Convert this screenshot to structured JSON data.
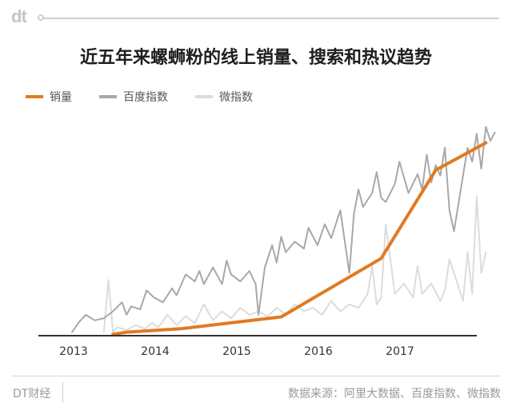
{
  "logo_text": "dt",
  "footer": {
    "brand": "DT财经",
    "source": "数据来源：阿里大数据、百度指数、微指数"
  },
  "colors": {
    "sales": "#e07a22",
    "baidu": "#a8a8a8",
    "weibo": "#dcdcdc",
    "axis": "#333333",
    "text": "#333333"
  },
  "chart_data": {
    "type": "line",
    "title": "近五年来螺蛳粉的线上销量、搜索和热议趋势",
    "x_ticks": [
      "2013",
      "2014",
      "2015",
      "2016",
      "2017"
    ],
    "xlim": [
      2013.0,
      2017.75
    ],
    "y_axis_shown": false,
    "legend_position": "top-left",
    "grid": false,
    "series": [
      {
        "name": "销量",
        "color": "#e07a22",
        "x": [
          2013.45,
          2013.6,
          2014.2,
          2015.3,
          2016.4,
          2017.0,
          2017.55
        ],
        "y": [
          2,
          5,
          10,
          27,
          111,
          238,
          277
        ]
      },
      {
        "name": "百度指数",
        "color": "#a8a8a8",
        "x": [
          2013.0,
          2013.08,
          2013.15,
          2013.25,
          2013.35,
          2013.45,
          2013.55,
          2013.6,
          2013.65,
          2013.75,
          2013.82,
          2013.9,
          2014.0,
          2014.1,
          2014.15,
          2014.25,
          2014.35,
          2014.4,
          2014.45,
          2014.55,
          2014.65,
          2014.7,
          2014.75,
          2014.85,
          2014.95,
          2015.02,
          2015.05,
          2015.12,
          2015.2,
          2015.25,
          2015.3,
          2015.35,
          2015.45,
          2015.55,
          2015.6,
          2015.7,
          2015.78,
          2015.85,
          2015.95,
          2016.05,
          2016.1,
          2016.15,
          2016.2,
          2016.3,
          2016.35,
          2016.4,
          2016.45,
          2016.55,
          2016.6,
          2016.7,
          2016.8,
          2016.85,
          2016.9,
          2016.95,
          2017.0,
          2017.05,
          2017.1,
          2017.15,
          2017.2,
          2017.3,
          2017.35,
          2017.4,
          2017.45,
          2017.5,
          2017.55,
          2017.6,
          2017.65
        ],
        "y": [
          5,
          20,
          30,
          22,
          25,
          35,
          48,
          30,
          42,
          38,
          65,
          55,
          48,
          68,
          58,
          88,
          78,
          93,
          74,
          98,
          74,
          108,
          88,
          78,
          93,
          74,
          30,
          98,
          130,
          105,
          142,
          120,
          135,
          125,
          155,
          130,
          160,
          140,
          180,
          90,
          175,
          210,
          185,
          205,
          235,
          198,
          192,
          218,
          250,
          205,
          232,
          210,
          260,
          220,
          245,
          230,
          270,
          180,
          150,
          230,
          270,
          250,
          290,
          240,
          300,
          280,
          292
        ]
      },
      {
        "name": "微指数",
        "color": "#dcdcdc",
        "x": [
          2013.35,
          2013.4,
          2013.45,
          2013.5,
          2013.6,
          2013.7,
          2013.8,
          2013.88,
          2013.95,
          2014.05,
          2014.15,
          2014.25,
          2014.35,
          2014.45,
          2014.55,
          2014.65,
          2014.75,
          2014.85,
          2014.95,
          2015.05,
          2015.15,
          2015.25,
          2015.35,
          2015.45,
          2015.55,
          2015.65,
          2015.75,
          2015.85,
          2015.95,
          2016.05,
          2016.15,
          2016.25,
          2016.3,
          2016.35,
          2016.4,
          2016.45,
          2016.55,
          2016.65,
          2016.75,
          2016.8,
          2016.85,
          2016.95,
          2017.05,
          2017.1,
          2017.15,
          2017.25,
          2017.3,
          2017.35,
          2017.4,
          2017.45,
          2017.5,
          2017.55
        ],
        "y": [
          5,
          80,
          5,
          12,
          8,
          15,
          10,
          18,
          12,
          30,
          15,
          28,
          18,
          45,
          22,
          35,
          25,
          40,
          30,
          35,
          28,
          40,
          30,
          45,
          35,
          40,
          30,
          50,
          35,
          45,
          40,
          60,
          100,
          45,
          55,
          160,
          60,
          75,
          55,
          100,
          60,
          75,
          50,
          65,
          110,
          70,
          50,
          120,
          60,
          200,
          90,
          120
        ]
      }
    ]
  }
}
